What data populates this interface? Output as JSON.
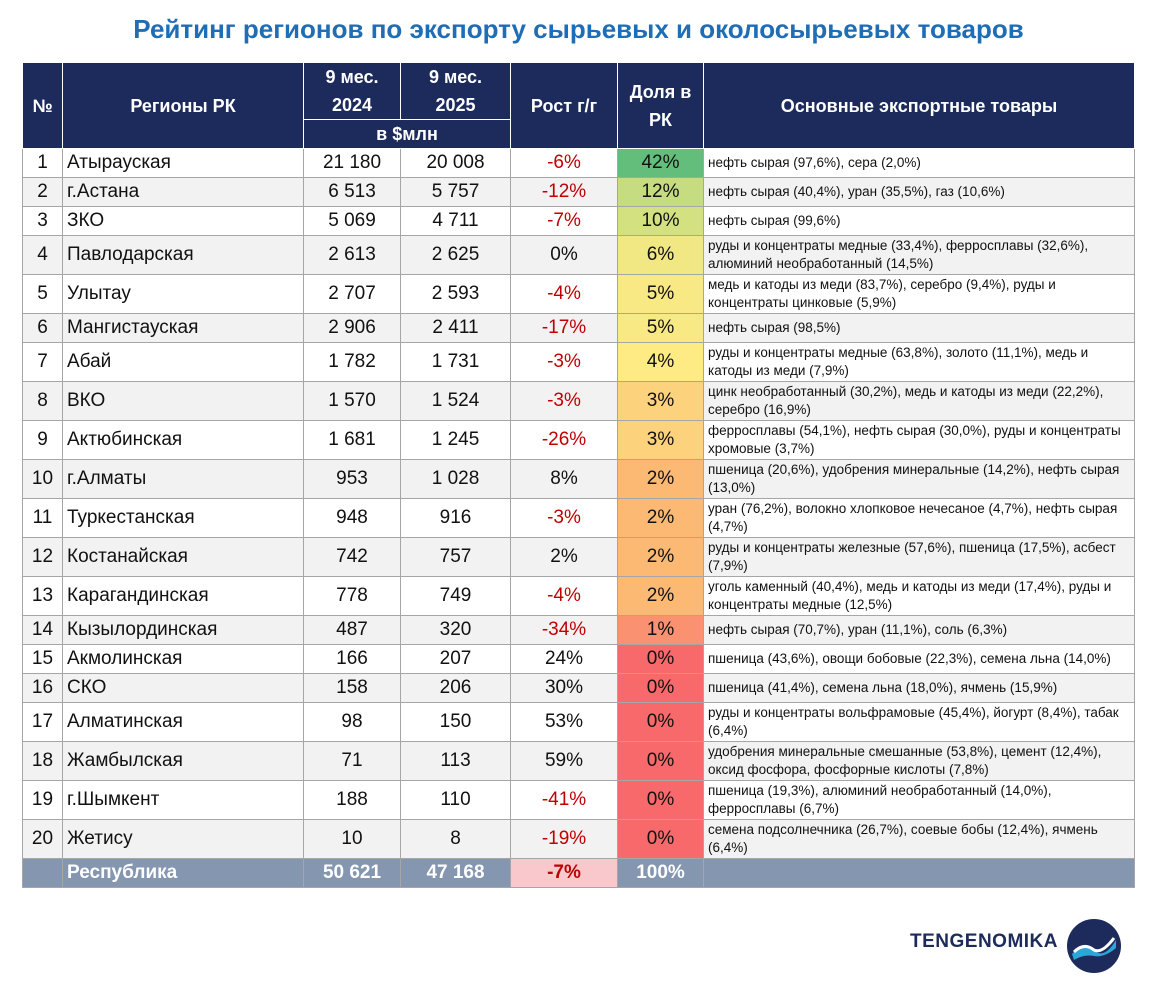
{
  "title": "Рейтинг регионов по экспорту сырьевых и околосырьевых товаров",
  "table": {
    "header": {
      "num": "№",
      "region": "Регионы РК",
      "y2024": "9 мес. 2024",
      "y2025": "9 мес. 2025",
      "unit": "в $млн",
      "growth": "Рост г/г",
      "share": "Доля в РК",
      "goods": "Основные экспортные товары"
    },
    "rows": [
      [
        "1",
        "Атырауская",
        "21 180",
        "20 008",
        "-6%",
        "42%",
        "нефть сырая (97,6%), сера (2,0%)"
      ],
      [
        "2",
        "г.Астана",
        "6 513",
        "5 757",
        "-12%",
        "12%",
        "нефть сырая (40,4%), уран (35,5%), газ (10,6%)"
      ],
      [
        "3",
        "ЗКО",
        "5 069",
        "4 711",
        "-7%",
        "10%",
        "нефть сырая (99,6%)"
      ],
      [
        "4",
        "Павлодарская",
        "2 613",
        "2 625",
        "0%",
        "6%",
        "руды и концентраты медные (33,4%), ферросплавы (32,6%), алюминий необработанный (14,5%)"
      ],
      [
        "5",
        "Улытау",
        "2 707",
        "2 593",
        "-4%",
        "5%",
        "медь и катоды из меди (83,7%), серебро (9,4%), руды и концентраты цинковые (5,9%)"
      ],
      [
        "6",
        "Мангистауская",
        "2 906",
        "2 411",
        "-17%",
        "5%",
        "нефть сырая (98,5%)"
      ],
      [
        "7",
        "Абай",
        "1 782",
        "1 731",
        "-3%",
        "4%",
        "руды и концентраты медные (63,8%), золото (11,1%), медь и катоды из меди (7,9%)"
      ],
      [
        "8",
        "ВКО",
        "1 570",
        "1 524",
        "-3%",
        "3%",
        "цинк необработанный (30,2%), медь и катоды из меди (22,2%), серебро (16,9%)"
      ],
      [
        "9",
        "Актюбинская",
        "1 681",
        "1 245",
        "-26%",
        "3%",
        "ферросплавы (54,1%), нефть сырая (30,0%), руды и концентраты хромовые (3,7%)"
      ],
      [
        "10",
        "г.Алматы",
        "953",
        "1 028",
        "8%",
        "2%",
        "пшеница (20,6%), удобрения минеральные (14,2%), нефть сырая (13,0%)"
      ],
      [
        "11",
        "Туркестанская",
        "948",
        "916",
        "-3%",
        "2%",
        "уран (76,2%), волокно хлопковое нечесаное (4,7%), нефть сырая (4,7%)"
      ],
      [
        "12",
        "Костанайская",
        "742",
        "757",
        "2%",
        "2%",
        "руды и концентраты железные (57,6%), пшеница (17,5%), асбест (7,9%)"
      ],
      [
        "13",
        "Карагандинская",
        "778",
        "749",
        "-4%",
        "2%",
        "уголь каменный (40,4%), медь и катоды из меди (17,4%), руды и концентраты медные (12,5%)"
      ],
      [
        "14",
        "Кызылординская",
        "487",
        "320",
        "-34%",
        "1%",
        "нефть сырая (70,7%), уран (11,1%), соль (6,3%)"
      ],
      [
        "15",
        "Акмолинская",
        "166",
        "207",
        "24%",
        "0%",
        "пшеница (43,6%), овощи бобовые (22,3%), семена льна (14,0%)"
      ],
      [
        "16",
        "СКО",
        "158",
        "206",
        "30%",
        "0%",
        "пшеница (41,4%), семена льна (18,0%), ячмень (15,9%)"
      ],
      [
        "17",
        "Алматинская",
        "98",
        "150",
        "53%",
        "0%",
        "руды и концентраты вольфрамовые (45,4%), йогурт (8,4%), табак (6,4%)"
      ],
      [
        "18",
        "Жамбылская",
        "71",
        "113",
        "59%",
        "0%",
        "удобрения минеральные смешанные (53,8%), цемент (12,4%), оксид фосфора, фосфорные кислоты (7,8%)"
      ],
      [
        "19",
        "г.Шымкент",
        "188",
        "110",
        "-41%",
        "0%",
        "пшеница (19,3%), алюминий необработанный (14,0%), ферросплавы (6,7%)"
      ],
      [
        "20",
        "Жетису",
        "10",
        "8",
        "-19%",
        "0%",
        "семена подсолнечника (26,7%), соевые бобы (12,4%), ячмень (6,4%)"
      ]
    ],
    "total": {
      "region": "Республика",
      "y2024": "50 621",
      "y2025": "47 168",
      "growth": "-7%",
      "share": "100%"
    }
  },
  "logo": "TENGENOMIKA"
}
